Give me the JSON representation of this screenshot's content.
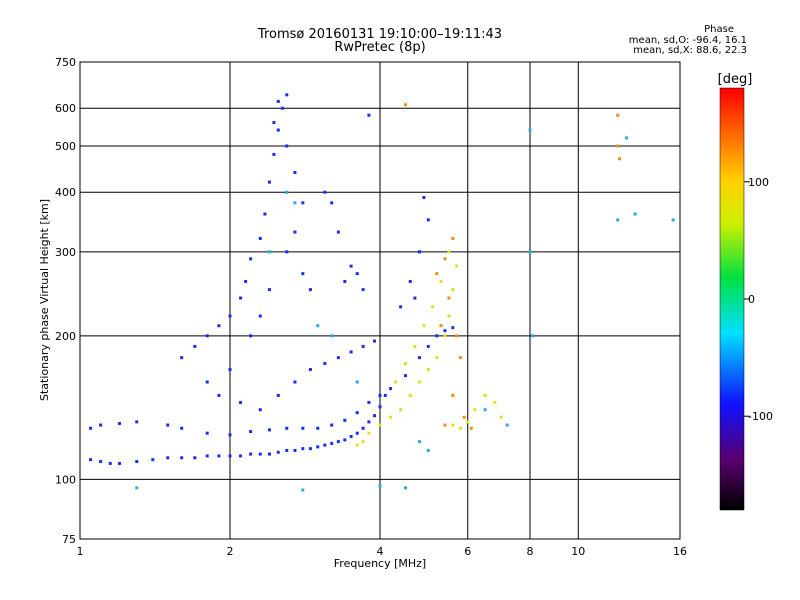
{
  "chart_data": {
    "type": "scatter",
    "title": "Tromsø 20160131 19:10:00–19:11:43",
    "subtitle": "RwPretec (8p)",
    "xlabel": "Frequency [MHz]",
    "ylabel": "Stationary phase Virtual Height [km]",
    "x_scale": "log",
    "y_scale": "log",
    "xlim": [
      1,
      16
    ],
    "ylim": [
      75,
      750
    ],
    "x_ticks": [
      "1",
      "2",
      "4",
      "6",
      "8",
      "10",
      "16"
    ],
    "y_ticks": [
      "75",
      "100",
      "200",
      "300",
      "400",
      "500",
      "600",
      "750"
    ],
    "grid": true,
    "colorbar": {
      "label": "[deg]",
      "ticks": [
        "100",
        "0",
        "-100"
      ],
      "range": [
        -180,
        180
      ]
    },
    "phase_info": {
      "heading": "Phase",
      "line_o": "mean, sd,O: -96.4, 16.1",
      "line_x": "mean, sd,X:  88.6, 22.3"
    },
    "series": [
      {
        "kind": "O-trace low",
        "color": "#1a2cf0",
        "points": [
          [
            1.05,
            110
          ],
          [
            1.1,
            109
          ],
          [
            1.15,
            108
          ],
          [
            1.2,
            108
          ],
          [
            1.3,
            109
          ],
          [
            1.4,
            110
          ],
          [
            1.5,
            111
          ],
          [
            1.6,
            111
          ],
          [
            1.7,
            111
          ],
          [
            1.8,
            112
          ],
          [
            1.9,
            112
          ],
          [
            2.0,
            112
          ],
          [
            2.1,
            112
          ],
          [
            2.2,
            113
          ],
          [
            2.3,
            113
          ],
          [
            2.4,
            113
          ],
          [
            2.5,
            114
          ],
          [
            2.6,
            115
          ],
          [
            2.7,
            115
          ],
          [
            2.8,
            116
          ],
          [
            2.9,
            116
          ],
          [
            3.0,
            117
          ],
          [
            3.1,
            118
          ],
          [
            3.2,
            119
          ],
          [
            3.3,
            120
          ],
          [
            3.4,
            121
          ],
          [
            3.5,
            123
          ],
          [
            3.6,
            125
          ],
          [
            3.7,
            128
          ],
          [
            3.8,
            132
          ],
          [
            3.9,
            136
          ],
          [
            4.0,
            142
          ],
          [
            4.1,
            150
          ]
        ]
      },
      {
        "kind": "O-trace high",
        "color": "#1a2cf0",
        "points": [
          [
            1.05,
            128
          ],
          [
            1.1,
            130
          ],
          [
            1.2,
            131
          ],
          [
            1.3,
            132
          ],
          [
            1.5,
            130
          ],
          [
            1.6,
            128
          ],
          [
            1.8,
            125
          ],
          [
            2.0,
            124
          ],
          [
            2.2,
            126
          ],
          [
            2.4,
            127
          ],
          [
            2.6,
            128
          ],
          [
            2.8,
            128
          ],
          [
            3.0,
            128
          ],
          [
            3.2,
            130
          ],
          [
            3.4,
            133
          ],
          [
            3.6,
            138
          ],
          [
            3.8,
            145
          ],
          [
            4.0,
            150
          ],
          [
            4.2,
            155
          ],
          [
            4.5,
            165
          ],
          [
            4.8,
            180
          ],
          [
            5.0,
            190
          ],
          [
            5.2,
            200
          ],
          [
            5.4,
            205
          ],
          [
            5.6,
            208
          ]
        ]
      },
      {
        "kind": "F-layer spread",
        "color": "#1a2cf0",
        "points": [
          [
            1.6,
            180
          ],
          [
            1.7,
            190
          ],
          [
            1.8,
            200
          ],
          [
            1.9,
            210
          ],
          [
            2.0,
            220
          ],
          [
            2.1,
            240
          ],
          [
            2.15,
            260
          ],
          [
            2.2,
            290
          ],
          [
            2.3,
            320
          ],
          [
            2.35,
            360
          ],
          [
            2.4,
            420
          ],
          [
            2.45,
            480
          ],
          [
            2.5,
            540
          ],
          [
            2.55,
            600
          ],
          [
            2.6,
            640
          ],
          [
            2.5,
            620
          ],
          [
            2.45,
            560
          ],
          [
            2.6,
            500
          ],
          [
            2.7,
            440
          ],
          [
            2.8,
            380
          ],
          [
            2.7,
            330
          ],
          [
            2.6,
            300
          ],
          [
            2.8,
            270
          ],
          [
            2.9,
            250
          ],
          [
            2.4,
            250
          ],
          [
            2.3,
            220
          ],
          [
            2.2,
            200
          ],
          [
            2.0,
            170
          ],
          [
            1.8,
            160
          ],
          [
            1.9,
            150
          ],
          [
            2.1,
            145
          ],
          [
            2.3,
            140
          ],
          [
            2.5,
            150
          ],
          [
            2.7,
            160
          ],
          [
            2.9,
            170
          ],
          [
            3.1,
            175
          ],
          [
            3.3,
            180
          ],
          [
            3.5,
            185
          ],
          [
            3.7,
            190
          ],
          [
            3.9,
            195
          ],
          [
            3.4,
            260
          ],
          [
            3.5,
            280
          ],
          [
            3.6,
            270
          ],
          [
            3.7,
            250
          ],
          [
            3.3,
            330
          ],
          [
            3.2,
            380
          ],
          [
            3.1,
            400
          ],
          [
            3.8,
            580
          ],
          [
            4.9,
            390
          ],
          [
            5.0,
            350
          ],
          [
            4.8,
            300
          ],
          [
            4.6,
            260
          ],
          [
            4.7,
            240
          ],
          [
            4.4,
            230
          ]
        ]
      },
      {
        "kind": "X-trace",
        "color": "#e0e020",
        "points": [
          [
            3.6,
            118
          ],
          [
            3.7,
            120
          ],
          [
            3.8,
            125
          ],
          [
            4.0,
            130
          ],
          [
            4.2,
            135
          ],
          [
            4.4,
            140
          ],
          [
            4.6,
            150
          ],
          [
            4.8,
            160
          ],
          [
            5.0,
            170
          ],
          [
            5.2,
            180
          ],
          [
            5.4,
            200
          ],
          [
            5.5,
            220
          ],
          [
            5.6,
            250
          ],
          [
            5.7,
            280
          ],
          [
            5.5,
            300
          ],
          [
            5.3,
            260
          ],
          [
            5.1,
            230
          ],
          [
            4.9,
            210
          ],
          [
            4.7,
            190
          ],
          [
            4.5,
            175
          ],
          [
            4.3,
            160
          ],
          [
            5.6,
            130
          ],
          [
            5.8,
            128
          ],
          [
            6.0,
            132
          ],
          [
            6.2,
            140
          ],
          [
            6.5,
            150
          ],
          [
            6.8,
            145
          ],
          [
            7.0,
            135
          ]
        ]
      },
      {
        "kind": "X-trace orange",
        "color": "#f08c10",
        "points": [
          [
            5.2,
            270
          ],
          [
            5.4,
            290
          ],
          [
            5.6,
            320
          ],
          [
            5.5,
            240
          ],
          [
            5.3,
            210
          ],
          [
            5.7,
            200
          ],
          [
            5.8,
            180
          ],
          [
            5.6,
            150
          ],
          [
            5.4,
            130
          ],
          [
            5.9,
            135
          ],
          [
            6.1,
            128
          ],
          [
            12.0,
            580
          ],
          [
            12.0,
            500
          ],
          [
            12.1,
            470
          ],
          [
            4.5,
            610
          ]
        ]
      },
      {
        "kind": "sparse",
        "color": "#20b0e0",
        "points": [
          [
            2.6,
            400
          ],
          [
            2.7,
            380
          ],
          [
            2.4,
            300
          ],
          [
            3.0,
            210
          ],
          [
            3.2,
            200
          ],
          [
            3.6,
            160
          ],
          [
            4.8,
            120
          ],
          [
            5.0,
            115
          ],
          [
            6.5,
            140
          ],
          [
            7.2,
            130
          ],
          [
            8.0,
            540
          ],
          [
            8.0,
            300
          ],
          [
            8.1,
            200
          ],
          [
            12.0,
            350
          ],
          [
            13.0,
            360
          ],
          [
            15.5,
            350
          ],
          [
            12.5,
            520
          ],
          [
            2.8,
            95
          ],
          [
            1.3,
            96
          ],
          [
            4.0,
            97
          ],
          [
            4.5,
            96
          ]
        ]
      }
    ]
  }
}
